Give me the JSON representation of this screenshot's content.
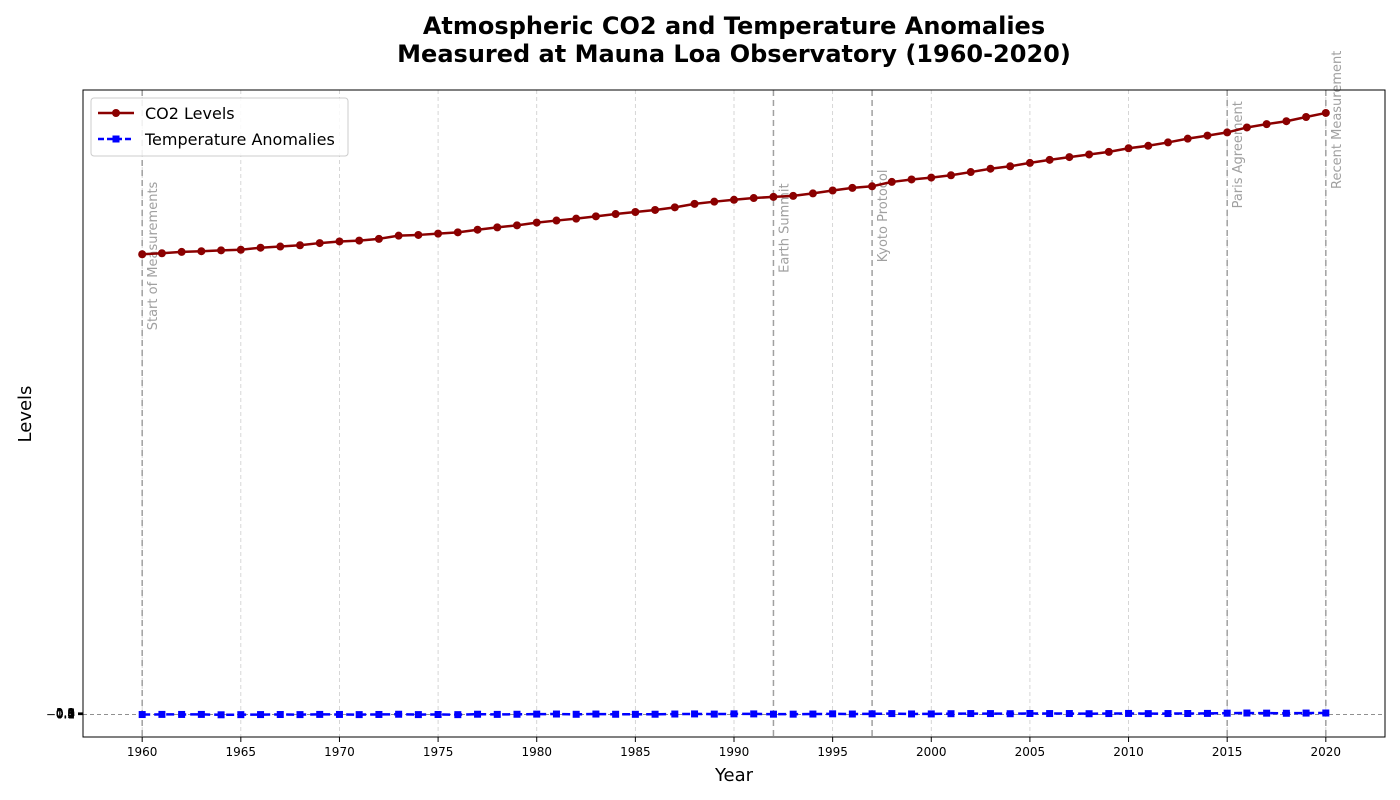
{
  "chart_data": {
    "type": "line",
    "title_line1": "Atmospheric CO2 and Temperature Anomalies",
    "title_line2": "Measured at Mauna Loa Observatory (1960-2020)",
    "xlabel": "Year",
    "ylabel": "Levels",
    "xlim": [
      1957,
      2023
    ],
    "ylim": [
      -15.5,
      430
    ],
    "x_ticks": [
      "1960",
      "1965",
      "1970",
      "1975",
      "1980",
      "1985",
      "1990",
      "1995",
      "2000",
      "2005",
      "2010",
      "2015",
      "2020"
    ],
    "y_tick_labels": [
      "−0.1",
      "0.0",
      "0.1",
      "0.2",
      "0.3",
      "0.4",
      "0.5",
      "0.6",
      "0.7",
      "0.8",
      "0.9",
      "1.0",
      "1.1"
    ],
    "x_grid": true,
    "legend_position": "upper-left",
    "x": [
      1960,
      1961,
      1962,
      1963,
      1964,
      1965,
      1966,
      1967,
      1968,
      1969,
      1970,
      1971,
      1972,
      1973,
      1974,
      1975,
      1976,
      1977,
      1978,
      1979,
      1980,
      1981,
      1982,
      1983,
      1984,
      1985,
      1986,
      1987,
      1988,
      1989,
      1990,
      1991,
      1992,
      1993,
      1994,
      1995,
      1996,
      1997,
      1998,
      1999,
      2000,
      2001,
      2002,
      2003,
      2004,
      2005,
      2006,
      2007,
      2008,
      2009,
      2010,
      2011,
      2012,
      2013,
      2014,
      2015,
      2016,
      2017,
      2018,
      2019,
      2020
    ],
    "series": [
      {
        "name": "CO2 Levels",
        "color": "#8b0000",
        "style": "solid",
        "marker": "circle",
        "values": [
          316.9,
          317.6,
          318.5,
          319.0,
          319.6,
          320.0,
          321.4,
          322.2,
          323.1,
          324.6,
          325.7,
          326.3,
          327.5,
          329.7,
          330.2,
          331.1,
          332.0,
          333.8,
          335.4,
          336.8,
          338.7,
          340.1,
          341.4,
          343.0,
          344.6,
          346.0,
          347.4,
          349.2,
          351.6,
          353.1,
          354.4,
          355.6,
          356.4,
          357.1,
          358.8,
          360.8,
          362.6,
          363.7,
          366.7,
          368.4,
          369.7,
          371.3,
          373.5,
          375.8,
          377.5,
          379.8,
          381.9,
          383.8,
          385.6,
          387.4,
          389.9,
          391.6,
          393.9,
          396.5,
          398.6,
          400.8,
          404.2,
          406.5,
          408.5,
          411.4,
          414.2
        ]
      },
      {
        "name": "Temperature Anomalies",
        "color": "#0000ff",
        "style": "dashed",
        "marker": "square",
        "values": [
          -0.03,
          0.06,
          0.03,
          0.05,
          -0.2,
          -0.11,
          -0.06,
          -0.02,
          -0.08,
          0.05,
          0.03,
          -0.08,
          0.01,
          0.16,
          -0.07,
          -0.01,
          -0.1,
          0.18,
          0.07,
          0.16,
          0.26,
          0.32,
          0.14,
          0.31,
          0.16,
          0.12,
          0.18,
          0.32,
          0.39,
          0.27,
          0.45,
          0.4,
          0.22,
          0.23,
          0.31,
          0.45,
          0.33,
          0.46,
          0.61,
          0.38,
          0.39,
          0.54,
          0.63,
          0.62,
          0.54,
          0.68,
          0.64,
          0.66,
          0.54,
          0.64,
          0.72,
          0.61,
          0.65,
          0.68,
          0.75,
          0.9,
          1.01,
          0.92,
          0.85,
          0.98,
          1.02
        ]
      }
    ],
    "events": [
      {
        "year": 1960,
        "label": "Start of Measurements"
      },
      {
        "year": 1992,
        "label": "Earth Summit"
      },
      {
        "year": 1997,
        "label": "Kyoto Protocol"
      },
      {
        "year": 2015,
        "label": "Paris Agreement"
      },
      {
        "year": 2020,
        "label": "Recent Measurement"
      }
    ]
  }
}
